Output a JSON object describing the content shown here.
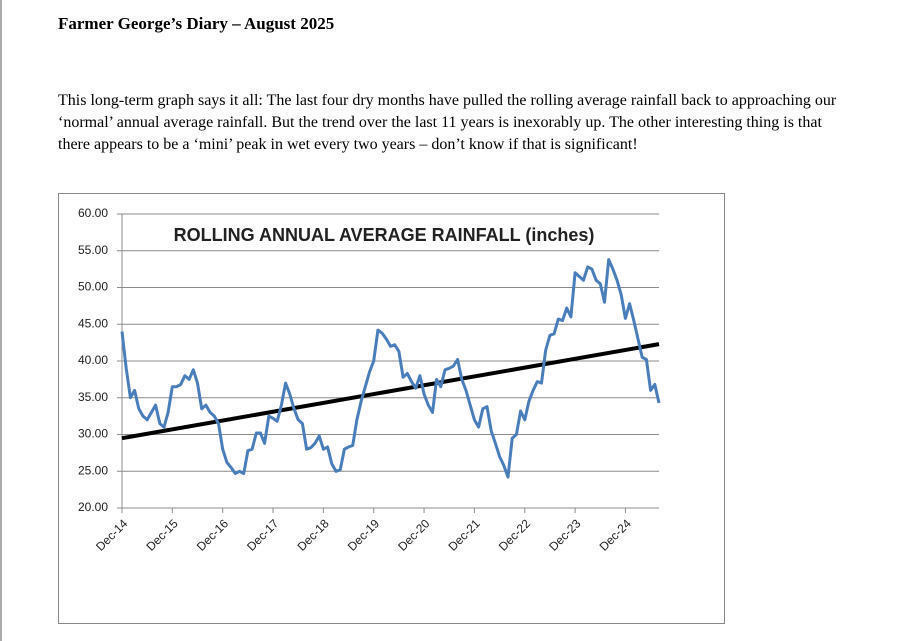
{
  "header": {
    "title": "Farmer George’s Diary – August 2025"
  },
  "paragraph": "This long-term graph says it all: The last four dry months have pulled the rolling average rainfall back to approaching our ‘normal’ annual average rainfall.  But the trend over the last 11 years is inexorably up.  The other interesting thing is that there appears to be a ‘mini’ peak in wet every two years – don’t know if that is significant!",
  "chart_data": {
    "type": "line",
    "title": "ROLLING ANNUAL AVERAGE RAINFALL (inches)",
    "categories": [
      "Dec-14",
      null,
      null,
      null,
      null,
      null,
      null,
      null,
      null,
      null,
      null,
      null,
      "Dec-15",
      null,
      null,
      null,
      null,
      null,
      null,
      null,
      null,
      null,
      null,
      null,
      "Dec-16",
      null,
      null,
      null,
      null,
      null,
      null,
      null,
      null,
      null,
      null,
      null,
      "Dec-17",
      null,
      null,
      null,
      null,
      null,
      null,
      null,
      null,
      null,
      null,
      null,
      "Dec-18",
      null,
      null,
      null,
      null,
      null,
      null,
      null,
      null,
      null,
      null,
      null,
      "Dec-19",
      null,
      null,
      null,
      null,
      null,
      null,
      null,
      null,
      null,
      null,
      null,
      "Dec-20",
      null,
      null,
      null,
      null,
      null,
      null,
      null,
      null,
      null,
      null,
      null,
      "Dec-21",
      null,
      null,
      null,
      null,
      null,
      null,
      null,
      null,
      null,
      null,
      null,
      "Dec-22",
      null,
      null,
      null,
      null,
      null,
      null,
      null,
      null,
      null,
      null,
      null,
      "Dec-23",
      null,
      null,
      null,
      null,
      null,
      null,
      null,
      null,
      null,
      null,
      null,
      "Dec-24",
      null,
      null,
      null,
      null,
      null,
      null,
      null,
      null
    ],
    "values": [
      44,
      39,
      35,
      36,
      33.5,
      32.5,
      32,
      33,
      34,
      31.5,
      31,
      33,
      36.5,
      36.5,
      36.8,
      38,
      37.5,
      38.8,
      37,
      33.5,
      34,
      33,
      32.5,
      31.5,
      28,
      26.2,
      25.5,
      24.7,
      25,
      24.7,
      27.8,
      28,
      30.2,
      30.2,
      28.8,
      32.5,
      32.2,
      31.8,
      34,
      37,
      35.5,
      33.5,
      32,
      31.5,
      28,
      28.2,
      28.8,
      29.8,
      28,
      28.3,
      26,
      25,
      25.2,
      28,
      28.3,
      28.5,
      32,
      34.5,
      36.5,
      38.5,
      40,
      44.2,
      43.8,
      43,
      42,
      42.2,
      41.3,
      37.8,
      38.3,
      37.2,
      36.3,
      38,
      35.5,
      34,
      33,
      37.5,
      36.5,
      38.8,
      39,
      39.3,
      40.2,
      37.5,
      36,
      34,
      32,
      31,
      33.5,
      33.8,
      30.5,
      28.8,
      27,
      25.8,
      24.2,
      29.5,
      30,
      33.2,
      32,
      34.5,
      36,
      37.2,
      37,
      41.5,
      43.5,
      43.7,
      45.7,
      45.5,
      47.2,
      46,
      52,
      51.5,
      51,
      52.8,
      52.5,
      51,
      50.5,
      48,
      53.8,
      52.5,
      51,
      49,
      45.8,
      47.8,
      45.5,
      43,
      40.5,
      40.2,
      36,
      36.8,
      34.3
    ],
    "color": "#4a7ebb",
    "trendline": {
      "start": 29.5,
      "end": 42.3,
      "color": "#000000"
    },
    "ylim": [
      20,
      60
    ],
    "yticks": [
      {
        "value": 20,
        "label": "20.00"
      },
      {
        "value": 25,
        "label": "25.00"
      },
      {
        "value": 30,
        "label": "30.00"
      },
      {
        "value": 35,
        "label": "35.00"
      },
      {
        "value": 40,
        "label": "40.00"
      },
      {
        "value": 45,
        "label": "45.00"
      },
      {
        "value": 50,
        "label": "50.00"
      },
      {
        "value": 55,
        "label": "55.00"
      },
      {
        "value": 60,
        "label": "60.00"
      }
    ],
    "grid": true
  }
}
